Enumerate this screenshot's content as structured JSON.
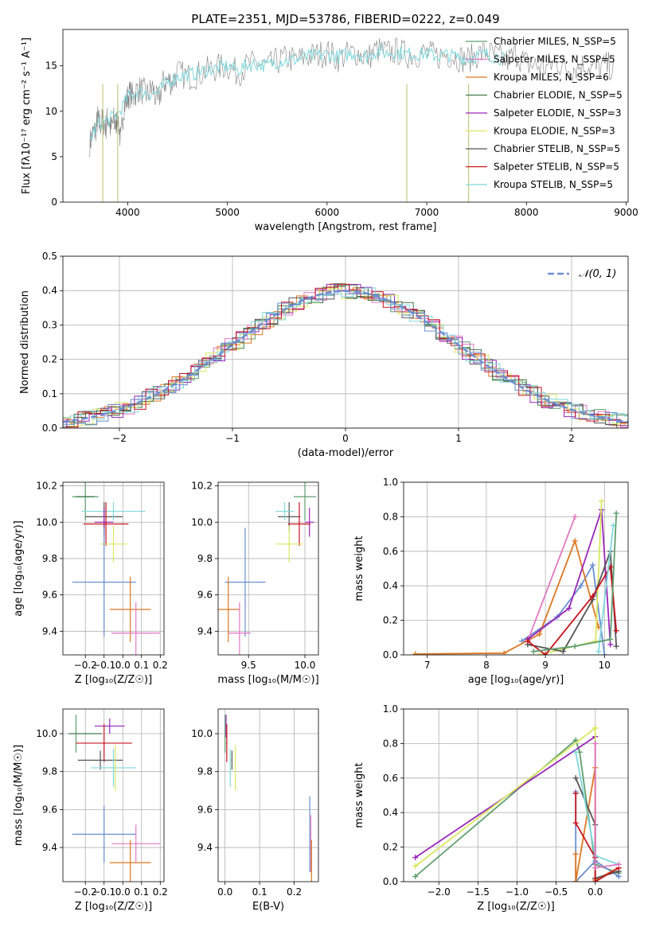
{
  "title": "PLATE=2351, MJD=53786, FIBERID=0222, z=0.049",
  "chart_data": [
    {
      "id": "spectrum",
      "type": "line",
      "xlabel": "wavelength [Angstrom, rest frame]",
      "ylabel": "Flux [fλ10⁻¹⁷ erg cm⁻² s⁻¹ A⁻¹]",
      "xlim": [
        3350,
        9020
      ],
      "ylim": [
        0,
        19
      ],
      "xticks": [
        4000,
        5000,
        6000,
        7000,
        8000,
        9000
      ],
      "yticks": [
        0,
        5,
        10,
        15
      ],
      "grid": false,
      "legend_position": "right",
      "legend": [
        {
          "label": "Chabrier MILES, N_SSP=5",
          "color": "#5f9e6e"
        },
        {
          "label": "Salpeter MILES, N_SSP=5",
          "color": "#e377c2"
        },
        {
          "label": "Kroupa MILES, N_SSP=6",
          "color": "#dd7722"
        },
        {
          "label": "Chabrier ELODIE, N_SSP=5",
          "color": "#3d7a4a"
        },
        {
          "label": "Salpeter ELODIE, N_SSP=3",
          "color": "#9a28b8"
        },
        {
          "label": "Kroupa ELODIE, N_SSP=3",
          "color": "#d8e860"
        },
        {
          "label": "Chabrier STELIB, N_SSP=5",
          "color": "#555555"
        },
        {
          "label": "Salpeter STELIB, N_SSP=5",
          "color": "#c8141e"
        },
        {
          "label": "Kroupa STELIB, N_SSP=5",
          "color": "#7fd8dc"
        }
      ],
      "series": [
        {
          "color": "#808080",
          "x": [
            3620,
            3650,
            3680,
            3700,
            3720,
            3750,
            3780,
            3800,
            3830,
            3860,
            3880,
            3900,
            3930,
            3960,
            3990,
            4020,
            4060,
            4100,
            4150,
            4200,
            4250,
            4300,
            4350,
            4400,
            4450,
            4500,
            4600,
            4700,
            4800,
            4900,
            5000,
            5100,
            5200,
            5300,
            5400,
            5500,
            5600,
            5700,
            5800,
            5900,
            6000,
            6100,
            6200,
            6300,
            6400,
            6500,
            6600,
            6700,
            6800,
            6900,
            7000,
            7100,
            7200,
            7300,
            7400,
            7500,
            7600,
            7700,
            7800,
            7900,
            8000,
            8100,
            8200,
            8300,
            8400,
            8500,
            8600,
            8700,
            8800,
            8900
          ],
          "y": [
            6.5,
            7.5,
            8.0,
            9.2,
            8.5,
            9.0,
            8.2,
            9.5,
            8.0,
            9.0,
            8.4,
            9.8,
            6.5,
            10.5,
            11.2,
            12.0,
            11.5,
            12.5,
            12.2,
            11.8,
            12.6,
            10.8,
            13.0,
            13.4,
            13.2,
            14.2,
            13.8,
            14.0,
            14.5,
            14.8,
            15.0,
            14.2,
            15.0,
            15.3,
            14.8,
            15.5,
            15.8,
            15.6,
            16.0,
            16.2,
            16.5,
            15.8,
            16.2,
            16.5,
            15.8,
            16.8,
            16.4,
            16.6,
            16.2,
            16.3,
            16.4,
            16.0,
            16.3,
            16.0,
            15.6,
            16.2,
            16.5,
            16.0,
            15.5,
            16.3,
            15.2,
            15.0,
            14.8,
            15.5,
            14.7,
            14.9,
            15.1,
            14.6,
            15.0,
            14.8
          ]
        },
        {
          "color": "#7fd8dc",
          "x": [
            3620,
            3700,
            3800,
            3900,
            4000,
            4100,
            4200,
            4300,
            4400,
            4500,
            4600,
            4700,
            4800,
            4900,
            5000,
            5100,
            5200,
            5300,
            5400,
            5500,
            5600,
            5700,
            5800,
            5900,
            6000,
            6100,
            6200,
            6300,
            6400,
            6500,
            6600,
            6700,
            6800,
            6900,
            7000,
            7100,
            7200,
            7300,
            7400,
            7500,
            7600,
            7700,
            7800
          ],
          "y": [
            6.8,
            8.6,
            9.0,
            9.6,
            11.5,
            12.2,
            12.0,
            12.0,
            13.2,
            13.8,
            14.0,
            14.2,
            14.6,
            14.7,
            15.0,
            14.5,
            15.1,
            15.2,
            15.0,
            15.5,
            15.6,
            15.7,
            16.0,
            16.1,
            16.3,
            16.0,
            16.2,
            16.4,
            16.0,
            16.6,
            16.4,
            16.5,
            16.3,
            16.3,
            16.3,
            16.1,
            16.2,
            16.0,
            15.8,
            16.1,
            16.3,
            16.0,
            15.6
          ]
        }
      ],
      "annotations": [
        {
          "x": 3750,
          "y": 0,
          "note": "spike"
        },
        {
          "x": 3900,
          "y": 0,
          "note": "spike"
        },
        {
          "x": 6800,
          "y": 0,
          "note": "spike"
        },
        {
          "x": 7420,
          "y": 0,
          "note": "spike"
        }
      ]
    },
    {
      "id": "residuals",
      "type": "line",
      "xlabel": "(data-model)/error",
      "ylabel": "Normed distribution",
      "xlim": [
        -2.5,
        2.5
      ],
      "ylim": [
        0,
        0.5
      ],
      "xticks": [
        -2,
        -1,
        0,
        1,
        2
      ],
      "yticks": [
        0.0,
        0.1,
        0.2,
        0.3,
        0.4,
        0.5
      ],
      "grid": true,
      "legend_position": "top-right",
      "legend": [
        {
          "label": "𝒩(0, 1)",
          "color": "#6a8fd0",
          "style": "dashed"
        }
      ],
      "histogram_bin_width": 0.1,
      "histogram_colors": [
        "#5f9e6e",
        "#e377c2",
        "#dd7722",
        "#3d7a4a",
        "#9a28b8",
        "#d8e860",
        "#555555",
        "#c8141e",
        "#7fd8dc",
        "#6a8fd0"
      ],
      "curve": "gaussian(0,1)"
    },
    {
      "id": "age-vs-Z",
      "type": "scatter",
      "xlabel": "Z [log₁₀(Z/Z☉)]",
      "ylabel": "age  [log₁₀(age/yr)]",
      "xlim": [
        -0.32,
        0.22
      ],
      "ylim": [
        9.27,
        10.22
      ],
      "xticks": [
        -0.2,
        -0.1,
        0.0,
        0.1,
        0.2
      ],
      "yticks": [
        9.4,
        9.6,
        9.8,
        10.0,
        10.2
      ],
      "grid": true,
      "points": [
        {
          "x": -0.2,
          "xerr": 0.07,
          "y": 10.14,
          "yerr": 0.13,
          "color": "#5f9e6e"
        },
        {
          "x": -0.2,
          "xerr": 0.05,
          "y": 10.14,
          "yerr": 0.0,
          "color": "#3d7a4a"
        },
        {
          "x": -0.1,
          "xerr": 0.1,
          "y": 10.03,
          "yerr": 0.08,
          "color": "#555555"
        },
        {
          "x": -0.05,
          "xerr": 0.17,
          "y": 10.06,
          "yerr": 0.05,
          "color": "#7fd8dc"
        },
        {
          "x": -0.1,
          "xerr": 0.05,
          "y": 10.0,
          "yerr": 0.08,
          "color": "#9a28b8"
        },
        {
          "x": -0.09,
          "xerr": 0.12,
          "y": 9.99,
          "yerr": 0.12,
          "color": "#c8141e"
        },
        {
          "x": -0.05,
          "xerr": 0.07,
          "y": 9.88,
          "yerr": 0.1,
          "color": "#d8e860"
        },
        {
          "x": -0.1,
          "xerr": 0.17,
          "y": 9.67,
          "yerr": 0.3,
          "color": "#6a8fd0"
        },
        {
          "x": 0.04,
          "xerr": 0.11,
          "y": 9.52,
          "yerr": 0.18,
          "color": "#dd7722"
        },
        {
          "x": 0.07,
          "xerr": 0.13,
          "y": 9.39,
          "yerr": 0.17,
          "color": "#e377c2"
        }
      ]
    },
    {
      "id": "age-vs-mass",
      "type": "scatter",
      "xlabel": "mass [log₁₀(M/M☉)]",
      "ylabel": "",
      "xlim": [
        9.23,
        10.12
      ],
      "ylim": [
        9.27,
        10.22
      ],
      "xticks": [
        9.5,
        10.0
      ],
      "yticks": [
        9.4,
        9.6,
        9.8,
        10.0,
        10.2
      ],
      "grid": true,
      "points": [
        {
          "x": 10.0,
          "xerr": 0.1,
          "y": 10.14,
          "yerr": 0.13,
          "color": "#5f9e6e"
        },
        {
          "x": 9.86,
          "xerr": 0.1,
          "y": 10.03,
          "yerr": 0.08,
          "color": "#555555"
        },
        {
          "x": 9.82,
          "xerr": 0.08,
          "y": 10.06,
          "yerr": 0.05,
          "color": "#7fd8dc"
        },
        {
          "x": 10.04,
          "xerr": 0.04,
          "y": 10.0,
          "yerr": 0.08,
          "color": "#9a28b8"
        },
        {
          "x": 9.95,
          "xerr": 0.1,
          "y": 9.99,
          "yerr": 0.12,
          "color": "#c8141e"
        },
        {
          "x": 9.86,
          "xerr": 0.12,
          "y": 9.88,
          "yerr": 0.1,
          "color": "#d8e860"
        },
        {
          "x": 9.47,
          "xerr": 0.18,
          "y": 9.67,
          "yerr": 0.3,
          "color": "#6a8fd0"
        },
        {
          "x": 9.32,
          "xerr": 0.1,
          "y": 9.52,
          "yerr": 0.18,
          "color": "#dd7722"
        },
        {
          "x": 9.42,
          "xerr": 0.1,
          "y": 9.39,
          "yerr": 0.17,
          "color": "#e377c2"
        }
      ]
    },
    {
      "id": "massweight-vs-age",
      "type": "line",
      "xlabel": "age  [log₁₀(age/yr)]",
      "ylabel": "mass weight",
      "xlim": [
        6.6,
        10.4
      ],
      "ylim": [
        0,
        1.0
      ],
      "xticks": [
        7,
        8,
        9,
        10
      ],
      "yticks": [
        0.0,
        0.2,
        0.4,
        0.6,
        0.8,
        1.0
      ],
      "grid": true,
      "series": [
        {
          "color": "#6a8fd0",
          "x": [
            8.6,
            9.2,
            9.6,
            9.8,
            10.0
          ],
          "y": [
            0.08,
            0.22,
            0.4,
            0.52,
            0.0
          ]
        },
        {
          "color": "#e377c2",
          "x": [
            8.7,
            9.5
          ],
          "y": [
            0.08,
            0.8
          ]
        },
        {
          "color": "#dd7722",
          "x": [
            6.8,
            8.3,
            8.9,
            9.5,
            9.9
          ],
          "y": [
            0.005,
            0.01,
            0.12,
            0.66,
            0.16
          ]
        },
        {
          "color": "#9a28b8",
          "x": [
            8.7,
            9.4,
            9.95,
            10.1
          ],
          "y": [
            0.09,
            0.27,
            0.84,
            0.06
          ]
        },
        {
          "color": "#d8e860",
          "x": [
            8.9,
            9.85,
            9.95
          ],
          "y": [
            0.0,
            0.08,
            0.89
          ]
        },
        {
          "color": "#555555",
          "x": [
            8.7,
            9.3,
            9.8,
            10.1,
            10.2
          ],
          "y": [
            0.06,
            0.02,
            0.32,
            0.6,
            0.05
          ]
        },
        {
          "color": "#c8141e",
          "x": [
            8.7,
            9.0,
            9.8,
            10.1,
            10.2
          ],
          "y": [
            0.08,
            0.0,
            0.34,
            0.51,
            0.14
          ]
        },
        {
          "color": "#7fd8dc",
          "x": [
            9.9,
            10.15
          ],
          "y": [
            0.02,
            0.75
          ]
        },
        {
          "color": "#5f9e6e",
          "x": [
            8.8,
            9.5,
            10.1,
            10.2
          ],
          "y": [
            0.02,
            0.05,
            0.09,
            0.82
          ]
        }
      ]
    },
    {
      "id": "mass-vs-Z",
      "type": "scatter",
      "xlabel": "Z [log₁₀(Z/Z☉)]",
      "ylabel": "mass [log₁₀(M/M☉)]",
      "xlim": [
        -0.32,
        0.22
      ],
      "ylim": [
        9.22,
        10.13
      ],
      "xticks": [
        -0.2,
        -0.1,
        0.0,
        0.1,
        0.2
      ],
      "yticks": [
        9.4,
        9.6,
        9.8,
        10.0
      ],
      "grid": true,
      "points": [
        {
          "x": -0.25,
          "xerr": 0.0,
          "y": 10.0,
          "yerr": 0.1,
          "color": "#5f9e6e"
        },
        {
          "x": -0.2,
          "xerr": 0.09,
          "y": 10.0,
          "yerr": 0.0,
          "color": "#3d7a4a"
        },
        {
          "x": -0.07,
          "xerr": 0.08,
          "y": 10.04,
          "yerr": 0.04,
          "color": "#9a28b8"
        },
        {
          "x": -0.1,
          "xerr": 0.15,
          "y": 9.95,
          "yerr": 0.1,
          "color": "#c8141e"
        },
        {
          "x": -0.12,
          "xerr": 0.12,
          "y": 9.86,
          "yerr": 0.05,
          "color": "#555555"
        },
        {
          "x": -0.05,
          "xerr": 0.12,
          "y": 9.82,
          "yerr": 0.1,
          "color": "#7fd8dc"
        },
        {
          "x": -0.04,
          "xerr": 0.0,
          "y": 9.82,
          "yerr": 0.12,
          "color": "#d8e860"
        },
        {
          "x": -0.1,
          "xerr": 0.17,
          "y": 9.47,
          "yerr": 0.15,
          "color": "#6a8fd0"
        },
        {
          "x": 0.07,
          "xerr": 0.13,
          "y": 9.42,
          "yerr": 0.1,
          "color": "#e377c2"
        },
        {
          "x": 0.04,
          "xerr": 0.11,
          "y": 9.32,
          "yerr": 0.12,
          "color": "#dd7722"
        }
      ]
    },
    {
      "id": "mass-vs-ebv",
      "type": "scatter",
      "xlabel": "E(B-V)",
      "ylabel": "",
      "xlim": [
        -0.02,
        0.27
      ],
      "ylim": [
        9.22,
        10.13
      ],
      "xticks": [
        0.0,
        0.1,
        0.2
      ],
      "yticks": [
        9.4,
        9.6,
        9.8,
        10.0
      ],
      "grid": true,
      "points": [
        {
          "x": 0.0,
          "y": 10.0,
          "yerr": 0.1,
          "color": "#5f9e6e"
        },
        {
          "x": 0.003,
          "y": 10.04,
          "yerr": 0.06,
          "color": "#9a28b8"
        },
        {
          "x": 0.005,
          "y": 9.95,
          "yerr": 0.1,
          "color": "#c8141e"
        },
        {
          "x": 0.015,
          "y": 9.82,
          "yerr": 0.1,
          "color": "#7fd8dc"
        },
        {
          "x": 0.02,
          "y": 9.86,
          "yerr": 0.05,
          "color": "#555555"
        },
        {
          "x": 0.03,
          "y": 9.82,
          "yerr": 0.12,
          "color": "#d8e860"
        },
        {
          "x": 0.245,
          "y": 9.47,
          "yerr": 0.2,
          "color": "#6a8fd0"
        },
        {
          "x": 0.248,
          "y": 9.42,
          "yerr": 0.15,
          "color": "#e377c2"
        },
        {
          "x": 0.25,
          "y": 9.32,
          "yerr": 0.12,
          "color": "#dd7722"
        }
      ]
    },
    {
      "id": "massweight-vs-Z",
      "type": "line",
      "xlabel": "Z [log₁₀(Z/Z☉)]",
      "ylabel": "mass weight",
      "xlim": [
        -2.45,
        0.42
      ],
      "ylim": [
        0,
        1.0
      ],
      "xticks": [
        -2.0,
        -1.5,
        -1.0,
        -0.5,
        0.0
      ],
      "yticks": [
        0.0,
        0.2,
        0.4,
        0.6,
        0.8,
        1.0
      ],
      "grid": true,
      "series": [
        {
          "color": "#5f9e6e",
          "x": [
            -2.3,
            -0.25,
            -0.2,
            0.0,
            0.3
          ],
          "y": [
            0.03,
            0.82,
            0.75,
            0.1,
            0.05
          ]
        },
        {
          "color": "#9a28b8",
          "x": [
            -2.3,
            0.0,
            0.0
          ],
          "y": [
            0.14,
            0.84,
            0.02
          ]
        },
        {
          "color": "#d8e860",
          "x": [
            -2.3,
            0.0,
            0.0
          ],
          "y": [
            0.09,
            0.89,
            0.08
          ]
        },
        {
          "color": "#6a8fd0",
          "x": [
            -0.25,
            -0.25,
            0.0,
            0.3
          ],
          "y": [
            0.52,
            0.0,
            0.12,
            0.03
          ]
        },
        {
          "color": "#dd7722",
          "x": [
            -0.25,
            -0.25,
            0.0,
            0.0,
            0.3
          ],
          "y": [
            0.16,
            0.0,
            0.66,
            0.01,
            0.08
          ]
        },
        {
          "color": "#555555",
          "x": [
            -0.25,
            0.0,
            0.0,
            0.3
          ],
          "y": [
            0.6,
            0.33,
            0.02,
            0.06
          ]
        },
        {
          "color": "#c8141e",
          "x": [
            -0.25,
            -0.25,
            0.0,
            0.0,
            0.3
          ],
          "y": [
            0.51,
            0.34,
            0.14,
            0.0,
            0.08
          ]
        },
        {
          "color": "#7fd8dc",
          "x": [
            -0.25,
            0.0,
            0.3
          ],
          "y": [
            0.75,
            0.15,
            0.1
          ]
        },
        {
          "color": "#e377c2",
          "x": [
            0.0,
            0.0,
            0.3
          ],
          "y": [
            0.8,
            0.08,
            0.1
          ]
        }
      ]
    }
  ]
}
